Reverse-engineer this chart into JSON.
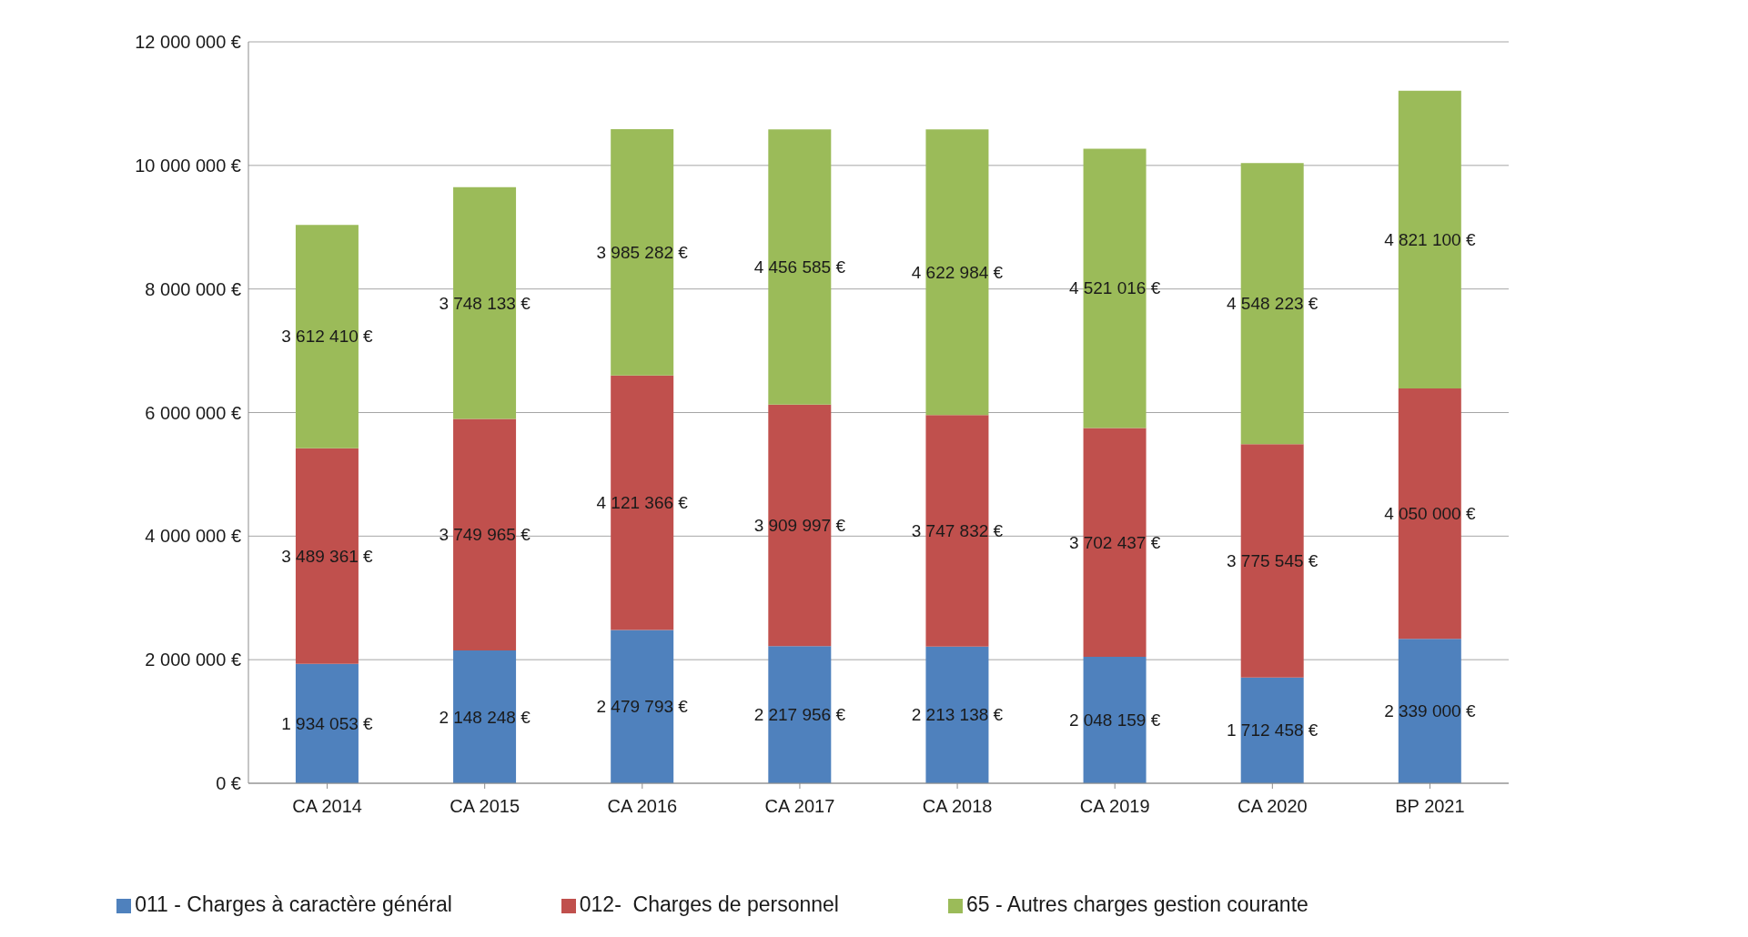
{
  "chart_data": {
    "type": "bar",
    "stacked": true,
    "categories": [
      "CA 2014",
      "CA 2015",
      "CA 2016",
      "CA 2017",
      "CA 2018",
      "CA 2019",
      "CA 2020",
      "BP 2021"
    ],
    "series": [
      {
        "name": "011 - Charges à caractère général",
        "color": "#4f81bd",
        "values": [
          1934053,
          2148248,
          2479793,
          2217956,
          2213138,
          2048159,
          1712458,
          2339000
        ],
        "value_labels": [
          "1 934 053 €",
          "2 148 248 €",
          "2 479 793 €",
          "2 217 956 €",
          "2 213 138 €",
          "2 048 159 €",
          "1 712 458 €",
          "2 339 000 €"
        ]
      },
      {
        "name": "012-  Charges de personnel",
        "color": "#c0504d",
        "values": [
          3489361,
          3749965,
          4121366,
          3909997,
          3747832,
          3702437,
          3775545,
          4050000
        ],
        "value_labels": [
          "3 489 361 €",
          "3 749 965 €",
          "4 121 366 €",
          "3 909 997 €",
          "3 747 832 €",
          "3 702 437 €",
          "3 775 545 €",
          "4 050 000 €"
        ]
      },
      {
        "name": "65 - Autres charges gestion courante",
        "color": "#9bbb59",
        "values": [
          3612410,
          3748133,
          3985282,
          4456585,
          4622984,
          4521016,
          4548223,
          4821100
        ],
        "value_labels": [
          "3 612 410 €",
          "3 748 133 €",
          "3 985 282 €",
          "4 456 585 €",
          "4 622 984 €",
          "4 521 016 €",
          "4 548 223 €",
          "4 821 100 €"
        ]
      }
    ],
    "ylim": [
      0,
      12000000
    ],
    "yticks": [
      {
        "value": 0,
        "label": "0 €"
      },
      {
        "value": 2000000,
        "label": "2 000 000 €"
      },
      {
        "value": 4000000,
        "label": "4 000 000 €"
      },
      {
        "value": 6000000,
        "label": "6 000 000 €"
      },
      {
        "value": 8000000,
        "label": "8 000 000 €"
      },
      {
        "value": 10000000,
        "label": "10 000 000 €"
      },
      {
        "value": 12000000,
        "label": "12 000 000 €"
      }
    ],
    "grid": "y",
    "legend": "bottom"
  }
}
